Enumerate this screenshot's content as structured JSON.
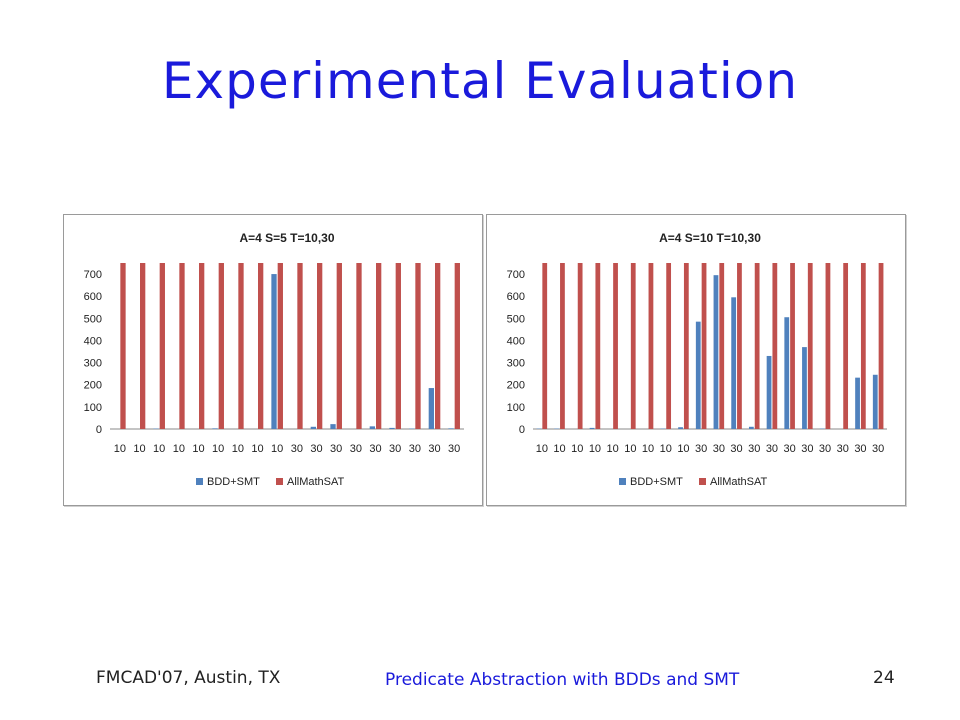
{
  "slide": {
    "title": "Experimental Evaluation",
    "footer_left": "FMCAD'07, Austin, TX",
    "footer_center": "Predicate Abstraction with BDDs and SMT",
    "page_number": "24"
  },
  "colors": {
    "title": "#1a1adb",
    "bdd_smt": "#4f81bd",
    "allmathsat": "#c0504d"
  },
  "chart_data": [
    {
      "type": "bar",
      "title": "A=4 S=5 T=10,30",
      "categories": [
        "10",
        "10",
        "10",
        "10",
        "10",
        "10",
        "10",
        "10",
        "10",
        "30",
        "30",
        "30",
        "30",
        "30",
        "30",
        "30",
        "30",
        "30"
      ],
      "ylim": [
        0,
        750
      ],
      "yticks": [
        0,
        100,
        200,
        300,
        400,
        500,
        600,
        700
      ],
      "grid": false,
      "legend": "bottom",
      "series": [
        {
          "name": "BDD+SMT",
          "color": "#4f81bd",
          "values": [
            0,
            0,
            2,
            0,
            0,
            3,
            0,
            0,
            700,
            0,
            10,
            22,
            0,
            12,
            5,
            2,
            185,
            3
          ]
        },
        {
          "name": "AllMathSAT",
          "color": "#c0504d",
          "values": [
            750,
            750,
            750,
            750,
            750,
            750,
            750,
            750,
            750,
            750,
            750,
            750,
            750,
            750,
            750,
            750,
            750,
            750
          ]
        }
      ]
    },
    {
      "type": "bar",
      "title": "A=4 S=10 T=10,30",
      "categories": [
        "10",
        "10",
        "10",
        "10",
        "10",
        "10",
        "10",
        "10",
        "10",
        "30",
        "30",
        "30",
        "30",
        "30",
        "30",
        "30",
        "30",
        "30",
        "30",
        "30"
      ],
      "ylim": [
        0,
        750
      ],
      "yticks": [
        0,
        100,
        200,
        300,
        400,
        500,
        600,
        700
      ],
      "grid": false,
      "legend": "bottom",
      "series": [
        {
          "name": "BDD+SMT",
          "color": "#4f81bd",
          "values": [
            2,
            2,
            0,
            5,
            0,
            0,
            0,
            2,
            8,
            485,
            695,
            595,
            10,
            330,
            505,
            370,
            2,
            0,
            232,
            245
          ]
        },
        {
          "name": "AllMathSAT",
          "color": "#c0504d",
          "values": [
            750,
            750,
            750,
            750,
            750,
            750,
            750,
            750,
            750,
            750,
            750,
            750,
            750,
            750,
            750,
            750,
            750,
            750,
            750,
            750
          ]
        }
      ]
    }
  ]
}
